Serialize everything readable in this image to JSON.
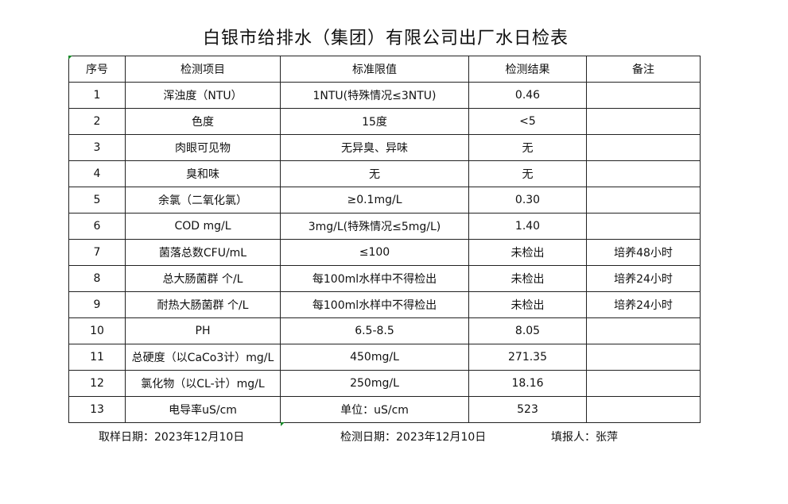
{
  "title": "白银市给排水（集团）有限公司出厂水日检表",
  "columns": [
    "序号",
    "检测项目",
    "标准限值",
    "检测结果",
    "备注"
  ],
  "rows": [
    [
      "1",
      "浑浊度（NTU）",
      "1NTU(特殊情况≤3NTU)",
      "0.46",
      ""
    ],
    [
      "2",
      "色度",
      "15度",
      "<5",
      ""
    ],
    [
      "3",
      "肉眼可见物",
      "无异臭、异味",
      "无",
      ""
    ],
    [
      "4",
      "臭和味",
      "无",
      "无",
      ""
    ],
    [
      "5",
      "余氯（二氧化氯）",
      "≥0.1mg/L",
      "0.30",
      ""
    ],
    [
      "6",
      "COD        mg/L",
      "3mg/L(特殊情况≤5mg/L)",
      "1.40",
      ""
    ],
    [
      "7",
      "菌落总数CFU/mL",
      "≤100",
      "未检出",
      "培养48小时"
    ],
    [
      "8",
      "总大肠菌群 个/L",
      "每100ml水样中不得检出",
      "未检出",
      "培养24小时"
    ],
    [
      "9",
      "耐热大肠菌群 个/L",
      "每100ml水样中不得检出",
      "未检出",
      "培养24小时"
    ],
    [
      "10",
      "PH",
      "6.5-8.5",
      "8.05",
      ""
    ],
    [
      "11",
      "总硬度（以CaCo3计）mg/L",
      "450mg/L",
      "271.35",
      ""
    ],
    [
      "12",
      "氯化物（以CL-计）mg/L",
      "250mg/L",
      "18.16",
      ""
    ],
    [
      "13",
      "电导率uS/cm",
      "单位：uS/cm",
      "523",
      ""
    ]
  ],
  "footer": {
    "sampling_date": "取样日期：2023年12月10日",
    "test_date": "检测日期：2023年12月10日",
    "reporter": "填报人：张萍"
  },
  "colors": {
    "cell_marker": "#1a8a2a",
    "border": "#222222"
  }
}
